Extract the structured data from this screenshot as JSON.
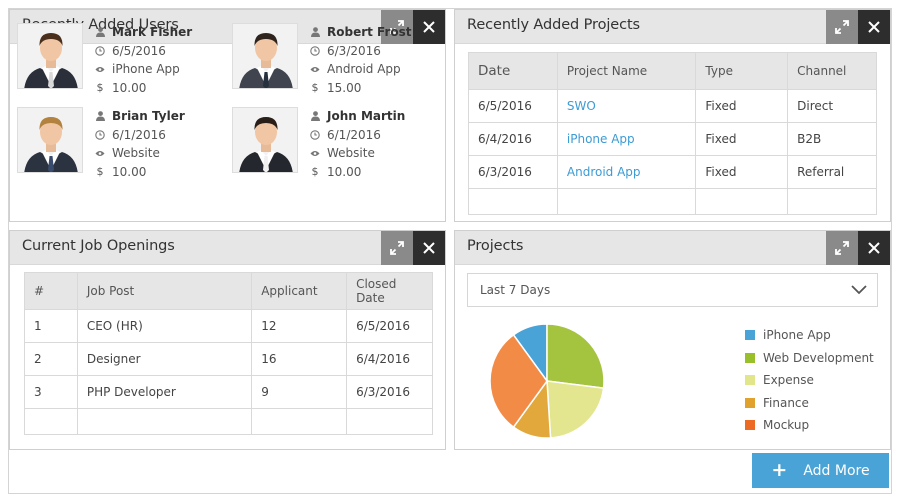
{
  "widgets": {
    "users": {
      "title": "Recently Added Users"
    },
    "projects": {
      "title": "Recently Added Projects"
    },
    "jobs": {
      "title": "Current Job Openings"
    },
    "pie": {
      "title": "Projects"
    }
  },
  "users": [
    {
      "name": "Mark Fisher",
      "date": "6/5/2016",
      "source": "iPhone App",
      "amount": "10.00",
      "currency": "$",
      "hair": "#4a2f1c",
      "suit": "#2a2f3a",
      "tie": "#d9d9d9"
    },
    {
      "name": "Robert Frost",
      "date": "6/3/2016",
      "source": "Android App",
      "amount": "15.00",
      "currency": "$",
      "hair": "#2e241d",
      "suit": "#3f444e",
      "tie": "#26313f"
    },
    {
      "name": "Brian Tyler",
      "date": "6/1/2016",
      "source": "Website",
      "amount": "10.00",
      "currency": "$",
      "hair": "#b4823f",
      "suit": "#2b3240",
      "tie": "#3a4c6d"
    },
    {
      "name": "John Martin",
      "date": "6/1/2016",
      "source": "Website",
      "amount": "10.00",
      "currency": "$",
      "hair": "#2a1f18",
      "suit": "#25272e",
      "tie": "#f0f0f0"
    }
  ],
  "projects_table": {
    "headers": [
      "Date",
      "Project Name",
      "Type",
      "Channel"
    ],
    "rows": [
      [
        "6/5/2016",
        "SWO",
        "Fixed",
        "Direct"
      ],
      [
        "6/4/2016",
        "iPhone App",
        "Fixed",
        "B2B"
      ],
      [
        "6/3/2016",
        "Android App",
        "Fixed",
        "Referral"
      ]
    ]
  },
  "jobs_table": {
    "headers": [
      "#",
      "Job Post",
      "Applicant",
      "Closed Date"
    ],
    "rows": [
      [
        "1",
        "CEO (HR)",
        "12",
        "6/5/2016"
      ],
      [
        "2",
        "Designer",
        "16",
        "6/4/2016"
      ],
      [
        "3",
        "PHP Developer",
        "9",
        "6/3/2016"
      ]
    ]
  },
  "pie_filter": {
    "selected": "Last 7 Days"
  },
  "chart_data": {
    "type": "pie",
    "title": "Projects",
    "labels": [
      "iPhone App",
      "Web Development",
      "Expense",
      "Finance",
      "Mockup"
    ],
    "values": [
      10,
      27,
      22,
      11,
      30
    ],
    "colors": [
      "#4aa3d6",
      "#a4c33f",
      "#e3e58f",
      "#e3a83b",
      "#f28b45"
    ],
    "legend_colors": [
      "#4aa3d6",
      "#99bf2a",
      "#e2e68a",
      "#e0a12d",
      "#ed6a24"
    ]
  },
  "actions": {
    "add_more": "Add More"
  },
  "colors": {
    "accent": "#4aa3d6",
    "link": "#3d9bd4",
    "header_bg": "#e6e6e6",
    "close_bg": "#2d2d2d",
    "expand_bg": "#8a8a8a"
  }
}
